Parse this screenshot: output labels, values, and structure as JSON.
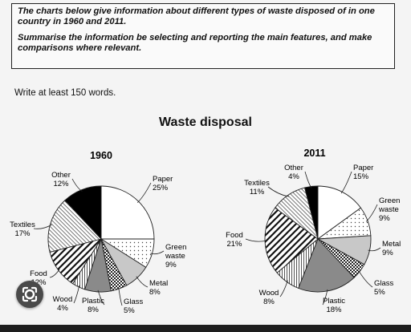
{
  "task": {
    "paragraph1": "The charts below give information about different types of waste disposed of in one country in 1960 and 2011.",
    "paragraph2": "Summarise the information be selecting and reporting the main features, and make comparisons where relevant."
  },
  "instruction": "Write at least 150 words.",
  "title": "Waste disposal",
  "lens_icon": "google-lens-icon",
  "chart_data": [
    {
      "type": "pie",
      "title": "1960",
      "slices": [
        {
          "label": "Paper",
          "value": 25,
          "value_label": "25%",
          "pattern": "white"
        },
        {
          "label": "Green waste",
          "value": 9,
          "value_label": "9%",
          "pattern": "dots"
        },
        {
          "label": "Metal",
          "value": 8,
          "value_label": "8%",
          "pattern": "lightgray"
        },
        {
          "label": "Glass",
          "value": 5,
          "value_label": "5%",
          "pattern": "checker"
        },
        {
          "label": "Plastic",
          "value": 8,
          "value_label": "8%",
          "pattern": "darkgray"
        },
        {
          "label": "Wood",
          "value": 4,
          "value_label": "4%",
          "pattern": "vlines"
        },
        {
          "label": "Food",
          "value": 12,
          "value_label": "12%",
          "pattern": "zigzag"
        },
        {
          "label": "Textiles",
          "value": 17,
          "value_label": "17%",
          "pattern": "diag"
        },
        {
          "label": "Other",
          "value": 12,
          "value_label": "12%",
          "pattern": "black"
        }
      ]
    },
    {
      "type": "pie",
      "title": "2011",
      "slices": [
        {
          "label": "Paper",
          "value": 15,
          "value_label": "15%",
          "pattern": "white"
        },
        {
          "label": "Green waste",
          "value": 9,
          "value_label": "9%",
          "pattern": "dots"
        },
        {
          "label": "Metal",
          "value": 9,
          "value_label": "9%",
          "pattern": "lightgray"
        },
        {
          "label": "Glass",
          "value": 5,
          "value_label": "5%",
          "pattern": "checker"
        },
        {
          "label": "Plastic",
          "value": 18,
          "value_label": "18%",
          "pattern": "darkgray"
        },
        {
          "label": "Wood",
          "value": 8,
          "value_label": "8%",
          "pattern": "vlines"
        },
        {
          "label": "Food",
          "value": 21,
          "value_label": "21%",
          "pattern": "zigzag"
        },
        {
          "label": "Textiles",
          "value": 11,
          "value_label": "11%",
          "pattern": "diag"
        },
        {
          "label": "Other",
          "value": 4,
          "value_label": "4%",
          "pattern": "black"
        }
      ]
    }
  ]
}
